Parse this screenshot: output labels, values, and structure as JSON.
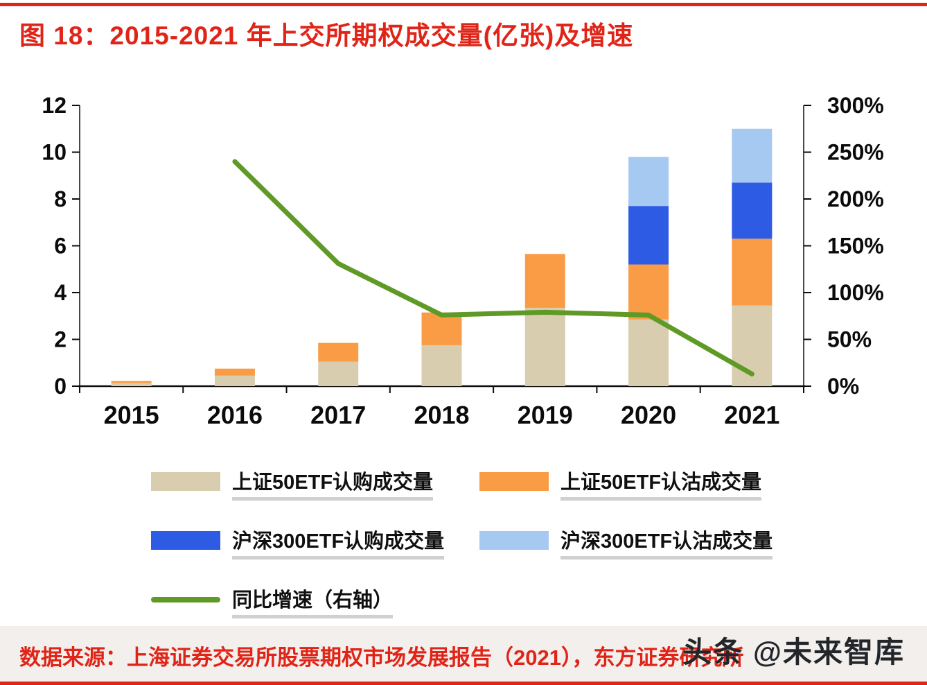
{
  "title": "图 18：2015-2021 年上交所期权成交量(亿张)及增速",
  "source": "数据来源：上海证券交易所股票期权市场发展报告（2021），东方证券研究所",
  "watermark": "头条 @未来智库",
  "colors": {
    "accent_red": "#e02417",
    "tan": "#d9cdb0",
    "orange": "#f99c45",
    "blue": "#2e5be4",
    "light_blue": "#a6c9f2",
    "green": "#5f9a26",
    "source_bg": "#f2efec",
    "axis_black": "#0b0b0b"
  },
  "chart_data": {
    "type": "bar",
    "subtype": "stacked-bars-with-line",
    "title": "2015-2021 年上交所期权成交量(亿张)及增速",
    "categories": [
      "2015",
      "2016",
      "2017",
      "2018",
      "2019",
      "2020",
      "2021"
    ],
    "series": [
      {
        "name": "上证50ETF认购成交量",
        "type": "bar",
        "color_key": "tan",
        "values": [
          0.13,
          0.45,
          1.05,
          1.75,
          3.35,
          2.85,
          3.45
        ]
      },
      {
        "name": "上证50ETF认沽成交量",
        "type": "bar",
        "color_key": "orange",
        "values": [
          0.09,
          0.3,
          0.8,
          1.4,
          2.3,
          2.35,
          2.85
        ]
      },
      {
        "name": "沪深300ETF认购成交量",
        "type": "bar",
        "color_key": "blue",
        "values": [
          0,
          0,
          0,
          0,
          0,
          2.5,
          2.4
        ]
      },
      {
        "name": "沪深300ETF认沽成交量",
        "type": "bar",
        "color_key": "light_blue",
        "values": [
          0,
          0,
          0,
          0,
          0,
          2.1,
          2.3
        ]
      },
      {
        "name": "同比增速（右轴）",
        "type": "line",
        "color_key": "green",
        "values": [
          null,
          240,
          131,
          76,
          79,
          76,
          13
        ]
      }
    ],
    "left_axis": {
      "min": 0,
      "max": 12,
      "ticks": [
        0,
        2,
        4,
        6,
        8,
        10,
        12
      ]
    },
    "right_axis": {
      "min": 0,
      "max": 300,
      "ticks": [
        0,
        50,
        100,
        150,
        200,
        250,
        300
      ],
      "tick_labels": [
        "0%",
        "50%",
        "100%",
        "150%",
        "200%",
        "250%",
        "300%"
      ]
    },
    "legend_position": "bottom",
    "grid": false
  }
}
